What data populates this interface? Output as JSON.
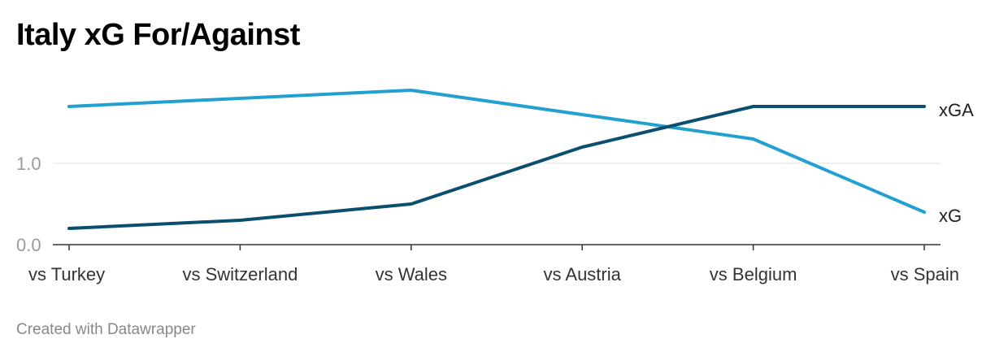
{
  "title": "Italy xG For/Against",
  "footer": "Created with Datawrapper",
  "chart_data": {
    "type": "line",
    "title": "Italy xG For/Against",
    "categories": [
      "vs Turkey",
      "vs Switzerland",
      "vs Wales",
      "vs Austria",
      "vs Belgium",
      "vs Spain"
    ],
    "yticks": [
      0,
      1
    ],
    "ytick_labels": [
      "0.0",
      "1.0"
    ],
    "ylim": [
      0,
      2
    ],
    "grid": true,
    "series": [
      {
        "name": "xG",
        "color": "#22a0d0",
        "values": [
          1.7,
          1.8,
          1.9,
          1.6,
          1.3,
          0.4
        ]
      },
      {
        "name": "xGA",
        "color": "#0a4f70",
        "values": [
          0.2,
          0.3,
          0.5,
          1.2,
          1.7,
          1.7
        ]
      }
    ]
  }
}
